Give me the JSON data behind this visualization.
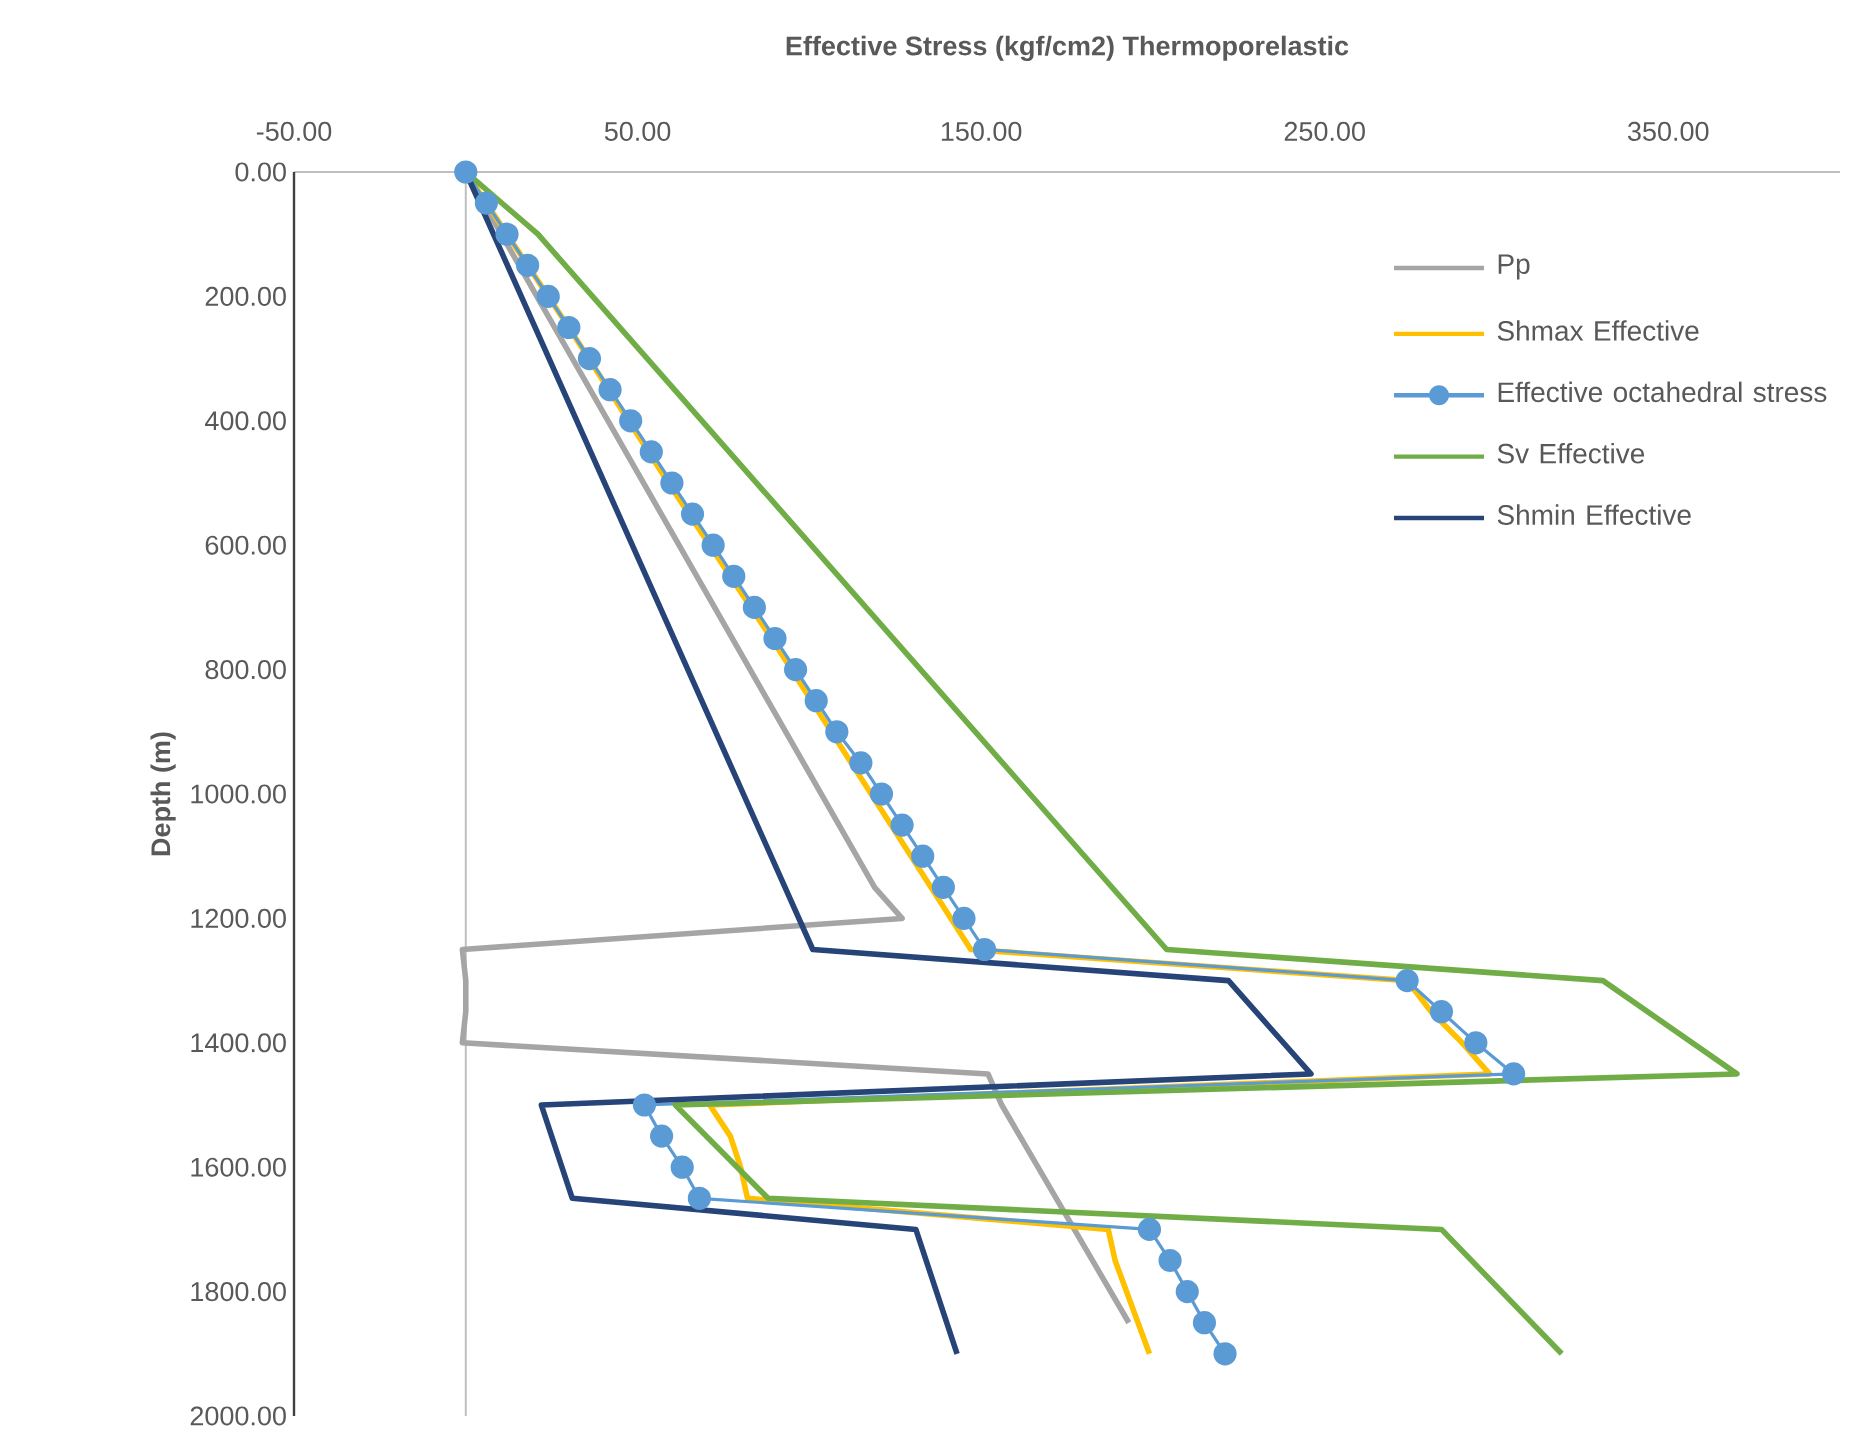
{
  "chart_data": {
    "type": "line",
    "xlabel": "Effective Stress (kgf/cm2) Thermoporelastic",
    "ylabel": "Depth (m)",
    "xlim": [
      -50,
      400
    ],
    "ylim": [
      2000,
      0
    ],
    "xticks": [
      {
        "value": -50,
        "label": "-50.00"
      },
      {
        "value": 50,
        "label": "50.00"
      },
      {
        "value": 150,
        "label": "150.00"
      },
      {
        "value": 250,
        "label": "250.00"
      },
      {
        "value": 350,
        "label": "350.00"
      }
    ],
    "yticks": [
      {
        "value": 0,
        "label": "0.00"
      },
      {
        "value": 200,
        "label": "200.00"
      },
      {
        "value": 400,
        "label": "400.00"
      },
      {
        "value": 600,
        "label": "600.00"
      },
      {
        "value": 800,
        "label": "800.00"
      },
      {
        "value": 1000,
        "label": "1000.00"
      },
      {
        "value": 1200,
        "label": "1200.00"
      },
      {
        "value": 1400,
        "label": "1400.00"
      },
      {
        "value": 1600,
        "label": "1600.00"
      },
      {
        "value": 1800,
        "label": "1800.00"
      },
      {
        "value": 2000,
        "label": "2000.00"
      }
    ],
    "grid": false,
    "legend": "top right",
    "ref_lines": [
      {
        "axis": "x",
        "value": 0,
        "color": "#bfbfbf"
      }
    ],
    "series": [
      {
        "name": "Pp",
        "color": "#a5a5a5",
        "marker": "none",
        "x": [
          0,
          119,
          127,
          -1,
          0,
          0,
          -1,
          152,
          156,
          193
        ],
        "values": [
          0,
          1150,
          1200,
          1250,
          1300,
          1350,
          1400,
          1450,
          1500,
          1850
        ]
      },
      {
        "name": "Shmax Effective",
        "color": "#ffc000",
        "marker": "none",
        "x": [
          0,
          30,
          59,
          89,
          118,
          147,
          274,
          281,
          290,
          298,
          71,
          77,
          80,
          82,
          187,
          189,
          199
        ],
        "values": [
          0,
          250,
          500,
          750,
          1000,
          1250,
          1300,
          1350,
          1400,
          1450,
          1500,
          1550,
          1600,
          1650,
          1700,
          1750,
          1900
        ]
      },
      {
        "name": "Effective octahedral stress",
        "color": "#5b9bd5",
        "marker": "circle",
        "x": [
          0,
          6,
          12,
          18,
          24,
          30,
          36,
          42,
          48,
          54,
          60,
          66,
          72,
          78,
          84,
          90,
          96,
          102,
          108,
          115,
          121,
          127,
          133,
          139,
          145,
          151,
          274,
          284,
          294,
          305,
          52,
          57,
          63,
          68,
          199,
          205,
          210,
          215,
          221
        ],
        "values": [
          0,
          50,
          100,
          150,
          200,
          250,
          300,
          350,
          400,
          450,
          500,
          550,
          600,
          650,
          700,
          750,
          800,
          850,
          900,
          950,
          1000,
          1050,
          1100,
          1150,
          1200,
          1250,
          1300,
          1350,
          1400,
          1450,
          1500,
          1550,
          1600,
          1650,
          1700,
          1750,
          1800,
          1850,
          1900
        ]
      },
      {
        "name": "Sv Effective",
        "color": "#70ad47",
        "marker": "none",
        "x": [
          0,
          21,
          204,
          331,
          370,
          61,
          88,
          284,
          319
        ],
        "values": [
          0,
          100,
          1250,
          1300,
          1450,
          1500,
          1650,
          1700,
          1900
        ]
      },
      {
        "name": "Shmin Effective",
        "color": "#264478",
        "marker": "none",
        "x": [
          0,
          101,
          222,
          246,
          22,
          31,
          131,
          143
        ],
        "values": [
          0,
          1250,
          1300,
          1450,
          1500,
          1650,
          1700,
          1900
        ]
      }
    ]
  }
}
